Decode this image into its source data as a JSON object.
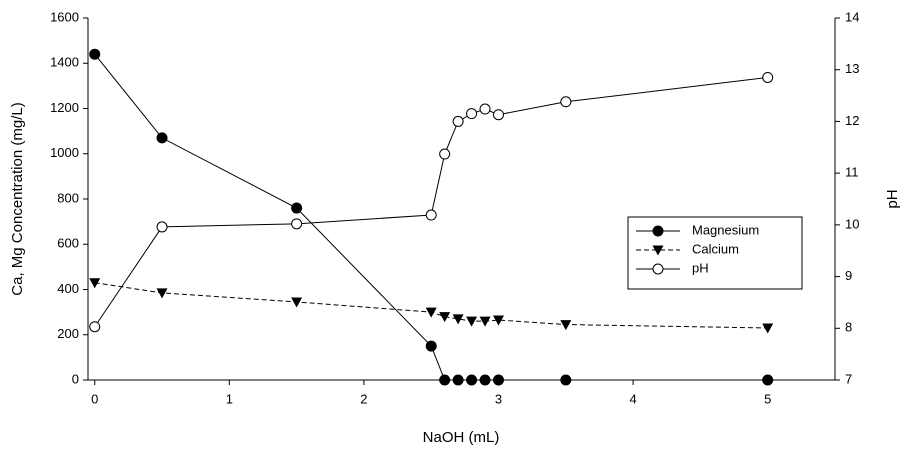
{
  "chart_data": {
    "type": "line",
    "x_label": "NaOH (mL)",
    "y_label": "Ca, Mg Concentration (mg/L)",
    "y2_label": "pH",
    "x": [
      0,
      0.5,
      1.5,
      2.5,
      2.6,
      2.7,
      2.8,
      2.9,
      3.0,
      3.5,
      5
    ],
    "xlim": [
      -0.05,
      5.5
    ],
    "xticks": [
      0,
      1,
      2,
      3,
      4,
      5
    ],
    "ylim": [
      0,
      1600
    ],
    "yticks": [
      0,
      200,
      400,
      600,
      800,
      1000,
      1200,
      1400,
      1600
    ],
    "y2lim": [
      7,
      14
    ],
    "y2ticks": [
      7,
      8,
      9,
      10,
      11,
      12,
      13,
      14
    ],
    "legend": "right",
    "series": [
      {
        "name": "Magnesium",
        "color": "#000000",
        "marker": "circle-filled",
        "dash": "solid",
        "values": [
          1440,
          1070,
          760,
          150,
          0,
          0,
          0,
          0,
          0,
          0,
          0
        ]
      },
      {
        "name": "Calcium",
        "color": "#000000",
        "marker": "triangle-down",
        "dash": "dashed",
        "values": [
          430,
          385,
          345,
          300,
          280,
          270,
          260,
          260,
          265,
          245,
          230
        ]
      },
      {
        "name": "pH",
        "color": "#000000",
        "marker": "circle-open",
        "dash": "solid",
        "axis": "y2",
        "values": [
          8.03,
          9.96,
          10.02,
          10.19,
          11.37,
          12.0,
          12.15,
          12.24,
          12.13,
          12.38,
          12.85
        ]
      }
    ]
  }
}
